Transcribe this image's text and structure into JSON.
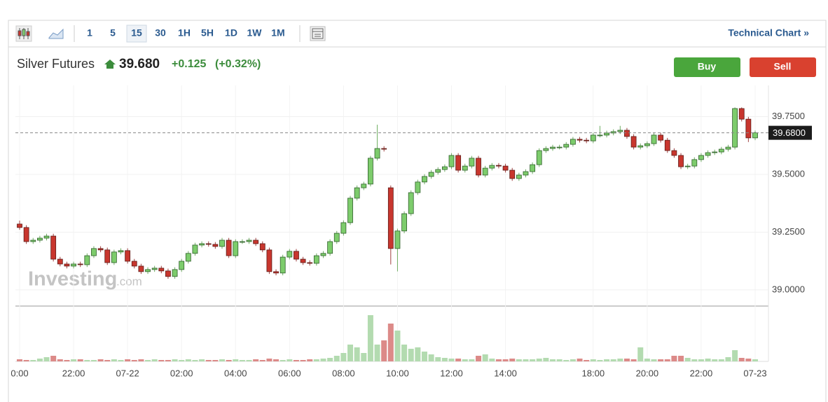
{
  "toolbar": {
    "intervals": [
      "1",
      "5",
      "15",
      "30",
      "1H",
      "5H",
      "1D",
      "1W",
      "1M"
    ],
    "selected": 2,
    "technical_chart": "Technical Chart »"
  },
  "header": {
    "name": "Silver Futures",
    "price": "39.680",
    "change": "+0.125",
    "change_pct": "(+0.32%)"
  },
  "buttons": {
    "buy": "Buy",
    "sell": "Sell"
  },
  "watermark": {
    "brand": "Investing",
    "suffix": ".com"
  },
  "chart_data": {
    "type": "candlestick",
    "categories": [
      "0:00",
      null,
      null,
      null,
      null,
      null,
      null,
      null,
      "22:00",
      null,
      null,
      null,
      null,
      null,
      null,
      null,
      "07-22",
      null,
      null,
      null,
      null,
      null,
      null,
      null,
      "02:00",
      null,
      null,
      null,
      null,
      null,
      null,
      null,
      "04:00",
      null,
      null,
      null,
      null,
      null,
      null,
      null,
      "06:00",
      null,
      null,
      null,
      null,
      null,
      null,
      null,
      "08:00",
      null,
      null,
      null,
      null,
      null,
      null,
      null,
      "10:00",
      null,
      null,
      null,
      null,
      null,
      null,
      null,
      "12:00",
      null,
      null,
      null,
      null,
      null,
      null,
      null,
      "14:00",
      null,
      null,
      null,
      null,
      null,
      null,
      null,
      null,
      null,
      null,
      null,
      null,
      "18:00",
      null,
      null,
      null,
      null,
      null,
      null,
      null,
      "20:00",
      null,
      null,
      null,
      null,
      null,
      null,
      null,
      "22:00",
      null,
      null,
      null,
      null,
      null,
      null,
      null,
      "07-23"
    ],
    "open": [
      39.285,
      39.27,
      39.209,
      39.215,
      39.224,
      39.233,
      39.133,
      39.112,
      39.103,
      39.112,
      39.109,
      39.148,
      39.179,
      39.173,
      39.118,
      39.164,
      39.17,
      39.124,
      39.103,
      39.079,
      39.088,
      39.094,
      39.082,
      39.058,
      39.088,
      39.124,
      39.158,
      39.194,
      39.2,
      39.197,
      39.188,
      39.215,
      39.148,
      39.209,
      39.209,
      39.215,
      39.2,
      39.173,
      39.079,
      39.073,
      39.142,
      39.167,
      39.133,
      39.118,
      39.115,
      39.148,
      39.158,
      39.209,
      39.245,
      39.291,
      39.397,
      39.442,
      39.458,
      39.57,
      39.612,
      39.442,
      39.179,
      39.255,
      39.33,
      39.421,
      39.467,
      39.491,
      39.509,
      39.521,
      39.533,
      39.582,
      39.518,
      39.536,
      39.57,
      39.497,
      39.527,
      39.539,
      39.536,
      39.518,
      39.482,
      39.497,
      39.512,
      39.542,
      39.603,
      39.612,
      39.618,
      39.618,
      39.63,
      39.652,
      39.648,
      39.645,
      39.67,
      39.67,
      39.679,
      39.685,
      39.691,
      39.664,
      39.618,
      39.624,
      39.633,
      39.67,
      39.648,
      39.603,
      39.582,
      39.533,
      39.536,
      39.564,
      39.582,
      39.594,
      39.597,
      39.609,
      39.618,
      39.785,
      39.739,
      39.658
    ],
    "high": [
      39.3,
      39.28,
      39.225,
      39.234,
      39.243,
      39.243,
      39.143,
      39.122,
      39.122,
      39.122,
      39.158,
      39.189,
      39.189,
      39.183,
      39.174,
      39.18,
      39.18,
      39.134,
      39.113,
      39.098,
      39.104,
      39.104,
      39.092,
      39.098,
      39.134,
      39.168,
      39.204,
      39.21,
      39.21,
      39.207,
      39.225,
      39.225,
      39.219,
      39.219,
      39.225,
      39.225,
      39.21,
      39.183,
      39.089,
      39.152,
      39.177,
      39.177,
      39.143,
      39.128,
      39.158,
      39.168,
      39.219,
      39.255,
      39.301,
      39.407,
      39.452,
      39.468,
      39.58,
      39.715,
      39.622,
      39.452,
      39.265,
      39.34,
      39.431,
      39.477,
      39.501,
      39.519,
      39.531,
      39.543,
      39.592,
      39.592,
      39.546,
      39.58,
      39.58,
      39.537,
      39.549,
      39.549,
      39.546,
      39.528,
      39.507,
      39.522,
      39.552,
      39.613,
      39.622,
      39.628,
      39.628,
      39.64,
      39.662,
      39.662,
      39.658,
      39.68,
      39.71,
      39.689,
      39.695,
      39.71,
      39.701,
      39.674,
      39.634,
      39.643,
      39.68,
      39.68,
      39.658,
      39.613,
      39.592,
      39.546,
      39.574,
      39.592,
      39.604,
      39.607,
      39.619,
      39.628,
      39.79,
      39.79,
      39.749,
      39.69
    ],
    "low": [
      39.26,
      39.199,
      39.199,
      39.205,
      39.214,
      39.123,
      39.102,
      39.093,
      39.093,
      39.099,
      39.099,
      39.138,
      39.163,
      39.108,
      39.108,
      39.154,
      39.114,
      39.093,
      39.069,
      39.069,
      39.078,
      39.072,
      39.048,
      39.048,
      39.078,
      39.114,
      39.148,
      39.184,
      39.187,
      39.178,
      39.178,
      39.138,
      39.138,
      39.199,
      39.199,
      39.19,
      39.163,
      39.069,
      39.063,
      39.063,
      39.132,
      39.123,
      39.108,
      39.105,
      39.105,
      39.138,
      39.148,
      39.199,
      39.235,
      39.281,
      39.387,
      39.432,
      39.448,
      39.56,
      39.599,
      39.11,
      39.08,
      39.245,
      39.32,
      39.411,
      39.457,
      39.481,
      39.499,
      39.511,
      39.523,
      39.508,
      39.508,
      39.526,
      39.487,
      39.487,
      39.517,
      39.526,
      39.508,
      39.472,
      39.472,
      39.487,
      39.502,
      39.532,
      39.593,
      39.602,
      39.608,
      39.608,
      39.62,
      39.638,
      39.635,
      39.635,
      39.66,
      39.66,
      39.669,
      39.675,
      39.654,
      39.608,
      39.608,
      39.614,
      39.623,
      39.638,
      39.593,
      39.572,
      39.523,
      39.523,
      39.526,
      39.554,
      39.572,
      39.584,
      39.587,
      39.599,
      39.608,
      39.729,
      39.64,
      39.648
    ],
    "close": [
      39.27,
      39.209,
      39.215,
      39.224,
      39.233,
      39.133,
      39.112,
      39.103,
      39.112,
      39.109,
      39.148,
      39.179,
      39.173,
      39.118,
      39.164,
      39.17,
      39.124,
      39.103,
      39.079,
      39.088,
      39.094,
      39.082,
      39.058,
      39.088,
      39.124,
      39.158,
      39.194,
      39.2,
      39.197,
      39.188,
      39.215,
      39.148,
      39.209,
      39.209,
      39.215,
      39.2,
      39.173,
      39.079,
      39.073,
      39.142,
      39.167,
      39.133,
      39.118,
      39.115,
      39.148,
      39.158,
      39.209,
      39.245,
      39.291,
      39.397,
      39.442,
      39.458,
      39.57,
      39.612,
      39.609,
      39.179,
      39.255,
      39.33,
      39.421,
      39.467,
      39.491,
      39.509,
      39.521,
      39.533,
      39.582,
      39.518,
      39.536,
      39.57,
      39.497,
      39.527,
      39.539,
      39.536,
      39.518,
      39.482,
      39.497,
      39.512,
      39.542,
      39.603,
      39.612,
      39.618,
      39.618,
      39.63,
      39.652,
      39.648,
      39.645,
      39.67,
      39.67,
      39.679,
      39.685,
      39.691,
      39.664,
      39.618,
      39.624,
      39.633,
      39.67,
      39.648,
      39.603,
      39.582,
      39.533,
      39.536,
      39.564,
      39.582,
      39.594,
      39.597,
      39.609,
      39.618,
      39.785,
      39.739,
      39.658,
      39.68
    ],
    "volume": [
      3,
      2,
      2,
      4,
      6,
      8,
      3,
      2,
      3,
      3,
      2,
      2,
      3,
      2,
      3,
      2,
      3,
      2,
      3,
      2,
      3,
      2,
      2,
      3,
      2,
      3,
      2,
      3,
      2,
      2,
      3,
      2,
      3,
      2,
      2,
      3,
      2,
      4,
      3,
      2,
      3,
      2,
      2,
      3,
      3,
      4,
      5,
      8,
      12,
      24,
      20,
      12,
      66,
      24,
      30,
      54,
      44,
      24,
      18,
      20,
      14,
      10,
      6,
      5,
      4,
      4,
      3,
      3,
      8,
      10,
      4,
      3,
      3,
      4,
      3,
      3,
      3,
      4,
      5,
      3,
      3,
      2,
      3,
      4,
      2,
      3,
      2,
      3,
      3,
      4,
      4,
      3,
      20,
      4,
      3,
      3,
      3,
      8,
      8,
      5,
      3,
      3,
      4,
      3,
      3,
      6,
      16,
      5,
      4,
      3
    ],
    "up_color": "#7dcc6c",
    "down_color": "#c8362e",
    "up_volume_color": "#b3dbb0",
    "down_volume_color": "#dc8a88",
    "ylim": [
      38.93,
      39.885
    ],
    "yticks": [
      {
        "value": 39.0,
        "label": "39.0000"
      },
      {
        "value": 39.25,
        "label": "39.2500"
      },
      {
        "value": 39.5,
        "label": "39.5000"
      },
      {
        "value": 39.75,
        "label": "39.7500"
      }
    ],
    "last_price": {
      "value": 39.68,
      "label": "39.6800"
    },
    "grid": true
  }
}
